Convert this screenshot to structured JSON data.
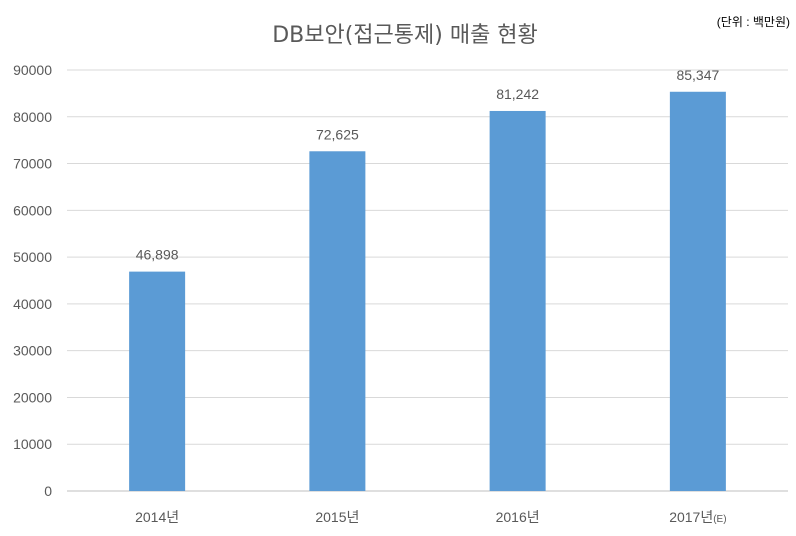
{
  "chart_data": {
    "type": "bar",
    "title": "DB보안(접근통제) 매출 현황",
    "unit_note": "(단위 : 백만원)",
    "categories": [
      "2014년",
      "2015년",
      "2016년",
      "2017년"
    ],
    "category_suffixes": [
      "",
      "",
      "",
      "(E)"
    ],
    "values": [
      46898,
      72625,
      81242,
      85347
    ],
    "data_labels": [
      "46,898",
      "72,625",
      "81,242",
      "85,347"
    ],
    "y_ticks": [
      "0",
      "10000",
      "20000",
      "30000",
      "40000",
      "50000",
      "60000",
      "70000",
      "80000",
      "90000"
    ],
    "ylim": [
      0,
      90000
    ],
    "grid": true,
    "legend": "none",
    "colors": {
      "bar": "#5b9bd5",
      "grid": "#d9d9d9",
      "text": "#595959",
      "title": "#595959"
    }
  }
}
